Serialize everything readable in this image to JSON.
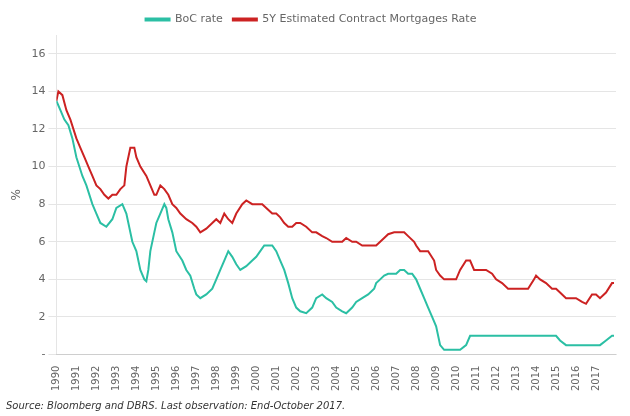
{
  "chart_data": {
    "type": "line",
    "ylabel": "%",
    "annotations": [
      "Source: Bloomberg and DBRS. Last observation: End-October 2017."
    ],
    "xlim": [
      1990,
      2018
    ],
    "xticks": [
      1990,
      1991,
      1992,
      1993,
      1994,
      1995,
      1996,
      1997,
      1998,
      1999,
      2000,
      2001,
      2002,
      2003,
      2004,
      2005,
      2006,
      2007,
      2008,
      2009,
      2010,
      2011,
      2012,
      2013,
      2014,
      2015,
      2016,
      2017
    ],
    "ylim": [
      0,
      17
    ],
    "yticks": [
      {
        "value": 0,
        "label": "-"
      },
      2,
      4,
      6,
      8,
      10,
      12,
      14,
      16
    ],
    "grid": "y",
    "legend": "top",
    "series": [
      {
        "name": "BoC rate",
        "color": "#2bbfa4",
        "x": [
          1990.0,
          1990.2,
          1990.4,
          1990.6,
          1990.8,
          1991.0,
          1991.3,
          1991.5,
          1991.8,
          1992.0,
          1992.2,
          1992.5,
          1992.8,
          1993.0,
          1993.3,
          1993.5,
          1993.8,
          1994.0,
          1994.2,
          1994.4,
          1994.5,
          1994.6,
          1994.7,
          1994.9,
          1995.0,
          1995.2,
          1995.4,
          1995.5,
          1995.6,
          1995.8,
          1996.0,
          1996.3,
          1996.5,
          1996.7,
          1996.9,
          1997.0,
          1997.2,
          1997.5,
          1997.8,
          1998.0,
          1998.2,
          1998.4,
          1998.6,
          1998.8,
          1999.0,
          1999.2,
          1999.5,
          1999.8,
          2000.0,
          2000.2,
          2000.4,
          2000.6,
          2000.8,
          2001.0,
          2001.2,
          2001.4,
          2001.6,
          2001.8,
          2002.0,
          2002.2,
          2002.5,
          2002.8,
          2003.0,
          2003.3,
          2003.5,
          2003.8,
          2004.0,
          2004.3,
          2004.5,
          2004.8,
          2005.0,
          2005.3,
          2005.6,
          2005.9,
          2006.0,
          2006.2,
          2006.4,
          2006.6,
          2006.9,
          2007.0,
          2007.2,
          2007.4,
          2007.6,
          2007.8,
          2008.0,
          2008.2,
          2008.4,
          2008.6,
          2008.8,
          2009.0,
          2009.2,
          2009.4,
          2009.6,
          2009.9,
          2010.0,
          2010.2,
          2010.5,
          2010.7,
          2010.9,
          2011.0,
          2011.3,
          2011.6,
          2011.9,
          2012.0,
          2012.3,
          2012.6,
          2012.9,
          2013.0,
          2013.3,
          2013.6,
          2013.9,
          2014.0,
          2014.3,
          2014.6,
          2014.9,
          2015.0,
          2015.2,
          2015.5,
          2015.8,
          2016.0,
          2016.3,
          2016.6,
          2016.9,
          2017.0,
          2017.2,
          2017.5,
          2017.8,
          2017.9
        ],
        "values": [
          13.5,
          13.0,
          12.5,
          12.2,
          11.5,
          10.5,
          9.5,
          9.0,
          8.0,
          7.5,
          7.0,
          6.8,
          7.2,
          7.8,
          8.0,
          7.5,
          6.0,
          5.5,
          4.5,
          4.0,
          3.9,
          4.5,
          5.5,
          6.5,
          7.0,
          7.5,
          8.0,
          7.8,
          7.2,
          6.5,
          5.5,
          5.0,
          4.5,
          4.2,
          3.5,
          3.2,
          3.0,
          3.2,
          3.5,
          4.0,
          4.5,
          5.0,
          5.5,
          5.2,
          4.8,
          4.5,
          4.7,
          5.0,
          5.2,
          5.5,
          5.8,
          5.8,
          5.8,
          5.5,
          5.0,
          4.5,
          3.8,
          3.0,
          2.5,
          2.3,
          2.2,
          2.5,
          3.0,
          3.2,
          3.0,
          2.8,
          2.5,
          2.3,
          2.2,
          2.5,
          2.8,
          3.0,
          3.2,
          3.5,
          3.8,
          4.0,
          4.2,
          4.3,
          4.3,
          4.3,
          4.5,
          4.5,
          4.3,
          4.3,
          4.0,
          3.5,
          3.0,
          2.5,
          2.0,
          1.5,
          0.5,
          0.25,
          0.25,
          0.25,
          0.25,
          0.25,
          0.5,
          1.0,
          1.0,
          1.0,
          1.0,
          1.0,
          1.0,
          1.0,
          1.0,
          1.0,
          1.0,
          1.0,
          1.0,
          1.0,
          1.0,
          1.0,
          1.0,
          1.0,
          1.0,
          1.0,
          0.75,
          0.5,
          0.5,
          0.5,
          0.5,
          0.5,
          0.5,
          0.5,
          0.5,
          0.75,
          1.0,
          1.0
        ]
      },
      {
        "name": "5Y Estimated Contract Mortgages Rate",
        "color": "#cc2222",
        "x": [
          1990.0,
          1990.1,
          1990.3,
          1990.5,
          1990.7,
          1991.0,
          1991.2,
          1991.4,
          1991.6,
          1991.8,
          1992.0,
          1992.2,
          1992.4,
          1992.6,
          1992.8,
          1993.0,
          1993.2,
          1993.4,
          1993.5,
          1993.7,
          1993.9,
          1994.0,
          1994.2,
          1994.5,
          1994.7,
          1994.9,
          1995.0,
          1995.2,
          1995.4,
          1995.6,
          1995.8,
          1996.0,
          1996.2,
          1996.5,
          1996.8,
          1997.0,
          1997.2,
          1997.5,
          1997.8,
          1998.0,
          1998.2,
          1998.4,
          1998.6,
          1998.8,
          1999.0,
          1999.3,
          1999.5,
          1999.8,
          2000.0,
          2000.3,
          2000.5,
          2000.8,
          2001.0,
          2001.2,
          2001.4,
          2001.6,
          2001.8,
          2002.0,
          2002.2,
          2002.5,
          2002.8,
          2003.0,
          2003.3,
          2003.5,
          2003.8,
          2004.0,
          2004.3,
          2004.5,
          2004.8,
          2005.0,
          2005.3,
          2005.6,
          2005.9,
          2006.0,
          2006.2,
          2006.4,
          2006.6,
          2006.9,
          2007.0,
          2007.2,
          2007.4,
          2007.6,
          2007.9,
          2008.0,
          2008.2,
          2008.4,
          2008.6,
          2008.9,
          2009.0,
          2009.2,
          2009.4,
          2009.6,
          2009.9,
          2010.0,
          2010.2,
          2010.5,
          2010.7,
          2010.9,
          2011.0,
          2011.2,
          2011.5,
          2011.8,
          2012.0,
          2012.3,
          2012.6,
          2012.9,
          2013.0,
          2013.3,
          2013.6,
          2013.9,
          2014.0,
          2014.2,
          2014.5,
          2014.8,
          2015.0,
          2015.2,
          2015.5,
          2015.8,
          2016.0,
          2016.3,
          2016.5,
          2016.8,
          2017.0,
          2017.2,
          2017.5,
          2017.8,
          2017.9
        ],
        "values": [
          13.5,
          14.0,
          13.8,
          13.0,
          12.5,
          11.5,
          11.0,
          10.5,
          10.0,
          9.5,
          9.0,
          8.8,
          8.5,
          8.3,
          8.5,
          8.5,
          8.8,
          9.0,
          10.0,
          11.0,
          11.0,
          10.5,
          10.0,
          9.5,
          9.0,
          8.5,
          8.5,
          9.0,
          8.8,
          8.5,
          8.0,
          7.8,
          7.5,
          7.2,
          7.0,
          6.8,
          6.5,
          6.7,
          7.0,
          7.2,
          7.0,
          7.5,
          7.2,
          7.0,
          7.5,
          8.0,
          8.2,
          8.0,
          8.0,
          8.0,
          7.8,
          7.5,
          7.5,
          7.3,
          7.0,
          6.8,
          6.8,
          7.0,
          7.0,
          6.8,
          6.5,
          6.5,
          6.3,
          6.2,
          6.0,
          6.0,
          6.0,
          6.2,
          6.0,
          6.0,
          5.8,
          5.8,
          5.8,
          5.8,
          6.0,
          6.2,
          6.4,
          6.5,
          6.5,
          6.5,
          6.5,
          6.3,
          6.0,
          5.8,
          5.5,
          5.5,
          5.5,
          5.0,
          4.5,
          4.2,
          4.0,
          4.0,
          4.0,
          4.0,
          4.5,
          5.0,
          5.0,
          4.5,
          4.5,
          4.5,
          4.5,
          4.3,
          4.0,
          3.8,
          3.5,
          3.5,
          3.5,
          3.5,
          3.5,
          4.0,
          4.2,
          4.0,
          3.8,
          3.5,
          3.5,
          3.3,
          3.0,
          3.0,
          3.0,
          2.8,
          2.7,
          3.2,
          3.2,
          3.0,
          3.3,
          3.8,
          3.8
        ]
      }
    ]
  }
}
